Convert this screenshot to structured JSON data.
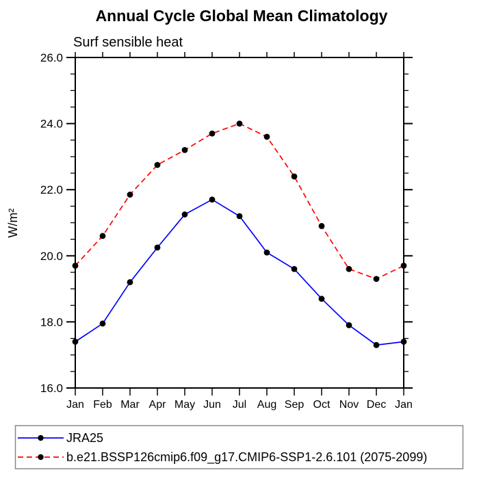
{
  "page": {
    "background": "#ffffff",
    "axis_color": "#000000",
    "marker_color": "#000000",
    "legend_border_color": "#888888"
  },
  "chart_data": {
    "type": "line",
    "title": "Annual Cycle Global Mean Climatology",
    "subtitle": "Surf sensible heat",
    "ylabel": "W/m²",
    "xlabel": "",
    "categories": [
      "Jan",
      "Feb",
      "Mar",
      "Apr",
      "May",
      "Jun",
      "Jul",
      "Aug",
      "Sep",
      "Oct",
      "Nov",
      "Dec",
      "Jan"
    ],
    "ylim": [
      16.0,
      26.0
    ],
    "y_major_ticks": [
      16.0,
      18.0,
      20.0,
      22.0,
      24.0,
      26.0
    ],
    "y_tick_labels": [
      "16.0",
      "18.0",
      "20.0",
      "22.0",
      "24.0",
      "26.0"
    ],
    "y_minor_step": 0.5,
    "grid": false,
    "legend_position": "bottom-left-box",
    "series": [
      {
        "name": "JRA25",
        "color": "#0000ff",
        "style": "solid",
        "marker": "circle",
        "values": [
          17.4,
          17.95,
          19.2,
          20.25,
          21.25,
          21.7,
          21.2,
          20.1,
          19.6,
          18.7,
          17.9,
          17.3,
          17.4
        ]
      },
      {
        "name": "b.e21.BSSP126cmip6.f09_g17.CMIP6-SSP1-2.6.101 (2075-2099)",
        "color": "#ff0000",
        "style": "dashed",
        "marker": "circle",
        "values": [
          19.7,
          20.6,
          21.85,
          22.75,
          23.2,
          23.7,
          24.0,
          23.6,
          22.4,
          20.9,
          19.6,
          19.3,
          19.7
        ]
      }
    ]
  }
}
